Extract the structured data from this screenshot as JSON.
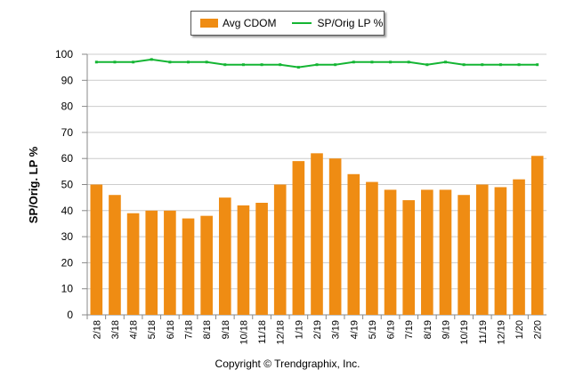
{
  "chart_data": {
    "type": "bar",
    "title": "",
    "ylabel": "SP/Orig. LP %",
    "xlabel": "",
    "ylim": [
      0,
      100
    ],
    "yticks": [
      0,
      10,
      20,
      30,
      40,
      50,
      60,
      70,
      80,
      90,
      100
    ],
    "grid": true,
    "legend_placement": "top-center",
    "categories": [
      "2/18",
      "3/18",
      "4/18",
      "5/18",
      "6/18",
      "7/18",
      "8/18",
      "9/18",
      "10/18",
      "11/18",
      "12/18",
      "1/19",
      "2/19",
      "3/19",
      "4/19",
      "5/19",
      "6/19",
      "7/19",
      "8/19",
      "9/19",
      "10/19",
      "11/19",
      "12/19",
      "1/20",
      "2/20"
    ],
    "series": [
      {
        "name": "Avg CDOM",
        "type": "bar",
        "color": "#ef8c13",
        "values": [
          50,
          46,
          39,
          40,
          40,
          37,
          38,
          45,
          42,
          43,
          50,
          59,
          62,
          60,
          54,
          51,
          48,
          44,
          48,
          48,
          46,
          50,
          49,
          52,
          61
        ]
      },
      {
        "name": "SP/Orig LP %",
        "type": "line",
        "color": "#14b533",
        "values": [
          97,
          97,
          97,
          98,
          97,
          97,
          97,
          96,
          96,
          96,
          96,
          95,
          96,
          96,
          97,
          97,
          97,
          97,
          96,
          97,
          96,
          96,
          96,
          96,
          96
        ]
      }
    ]
  },
  "footer": {
    "copyright": "Copyright © Trendgraphix, Inc."
  }
}
